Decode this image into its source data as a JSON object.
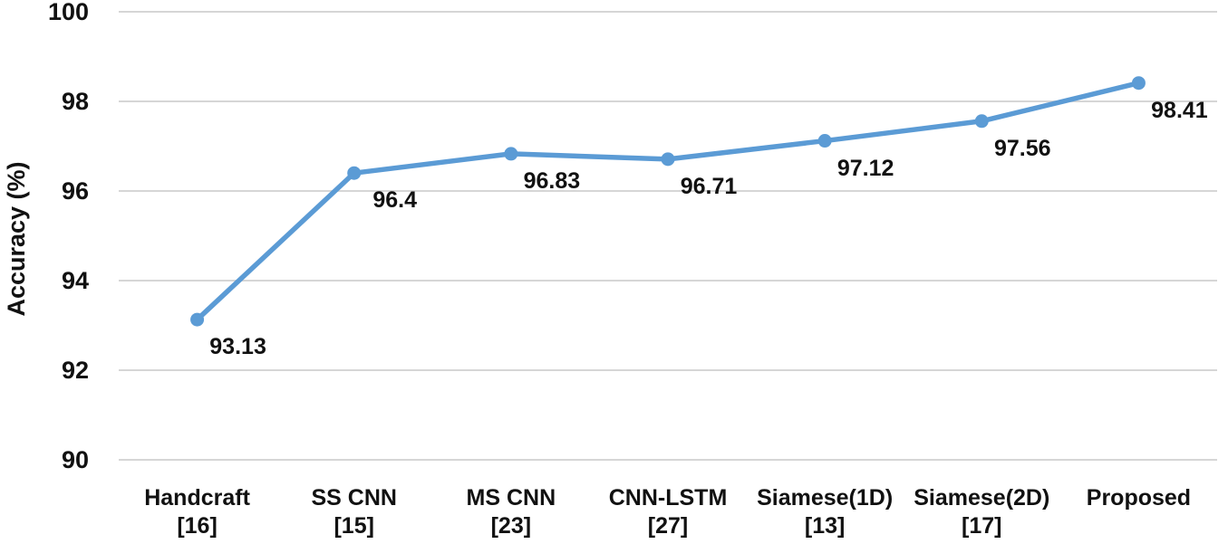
{
  "chart_data": {
    "type": "line",
    "title": "",
    "xlabel": "",
    "ylabel": "Accuracy (%)",
    "categories": [
      {
        "label": "Handcraft",
        "ref": "[16]"
      },
      {
        "label": "SS CNN",
        "ref": "[15]"
      },
      {
        "label": "MS CNN",
        "ref": "[23]"
      },
      {
        "label": "CNN-LSTM",
        "ref": "[27]"
      },
      {
        "label": "Siamese(1D)",
        "ref": "[13]"
      },
      {
        "label": "Siamese(2D)",
        "ref": "[17]"
      },
      {
        "label": "Proposed",
        "ref": ""
      }
    ],
    "series": [
      {
        "name": "Accuracy",
        "values": [
          93.13,
          96.4,
          96.83,
          96.71,
          97.12,
          97.56,
          98.41
        ],
        "data_labels": [
          "93.13",
          "96.4",
          "96.83",
          "96.71",
          "97.12",
          "97.56",
          "98.41"
        ]
      }
    ],
    "yticks": [
      100,
      98,
      96,
      94,
      92,
      90
    ],
    "ylim": [
      90,
      100
    ],
    "grid": true,
    "legend_position": "none",
    "line_color": "#5B9BD5",
    "marker_color": "#5B9BD5",
    "gridline_color": "#d6d6d6",
    "text_color": "#111111",
    "background_color": "#ffffff"
  }
}
